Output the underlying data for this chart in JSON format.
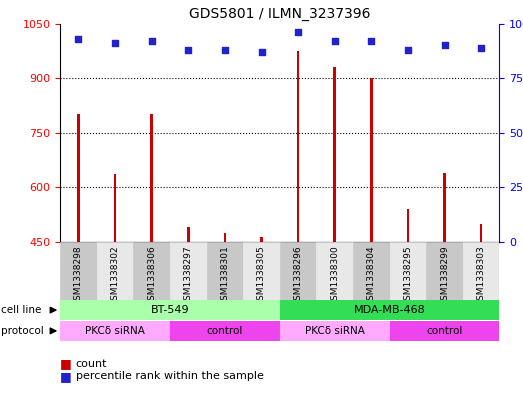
{
  "title": "GDS5801 / ILMN_3237396",
  "samples": [
    "GSM1338298",
    "GSM1338302",
    "GSM1338306",
    "GSM1338297",
    "GSM1338301",
    "GSM1338305",
    "GSM1338296",
    "GSM1338300",
    "GSM1338304",
    "GSM1338295",
    "GSM1338299",
    "GSM1338303"
  ],
  "counts": [
    800,
    635,
    800,
    490,
    473,
    462,
    975,
    930,
    900,
    540,
    640,
    500
  ],
  "percentiles": [
    93,
    91,
    92,
    88,
    88,
    87,
    96,
    92,
    92,
    88,
    90,
    89
  ],
  "ylim_left": [
    450,
    1050
  ],
  "ylim_right": [
    0,
    100
  ],
  "yticks_left": [
    450,
    600,
    750,
    900,
    1050
  ],
  "yticks_right": [
    0,
    25,
    50,
    75,
    100
  ],
  "bar_color": "#cc0000",
  "dot_color": "#2222cc",
  "cell_line_groups": [
    {
      "label": "BT-549",
      "start": 0,
      "end": 6,
      "color": "#aaffaa"
    },
    {
      "label": "MDA-MB-468",
      "start": 6,
      "end": 12,
      "color": "#33dd55"
    }
  ],
  "protocol_groups": [
    {
      "label": "PKCδ siRNA",
      "start": 0,
      "end": 3,
      "color": "#ffaaff"
    },
    {
      "label": "control",
      "start": 3,
      "end": 6,
      "color": "#ee44ee"
    },
    {
      "label": "PKCδ siRNA",
      "start": 6,
      "end": 9,
      "color": "#ffaaff"
    },
    {
      "label": "control",
      "start": 9,
      "end": 12,
      "color": "#ee44ee"
    }
  ],
  "sample_bg_colors": [
    "#c8c8c8",
    "#e8e8e8"
  ],
  "grid_ticks": [
    600,
    750,
    900
  ]
}
